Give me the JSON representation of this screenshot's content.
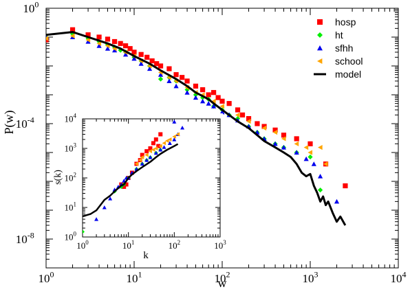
{
  "chart_data": [
    {
      "type": "scatter",
      "title": "",
      "xlabel": "w",
      "ylabel": "P(w)",
      "xscale": "log",
      "yscale": "log",
      "xlim": [
        1,
        10000
      ],
      "ylim": [
        1e-09,
        1
      ],
      "x_ticks": [
        {
          "base": "10",
          "exp": "0"
        },
        {
          "base": "10",
          "exp": "1"
        },
        {
          "base": "10",
          "exp": "2"
        },
        {
          "base": "10",
          "exp": "3"
        },
        {
          "base": "10",
          "exp": "4"
        }
      ],
      "y_ticks": [
        {
          "base": "10",
          "exp": "0",
          "value": 1
        },
        {
          "base": "10",
          "exp": "-4",
          "value": 0.0001
        },
        {
          "base": "10",
          "exp": "-8",
          "value": 1e-08
        }
      ],
      "legend_position": "top-right",
      "series": [
        {
          "name": "hosp",
          "marker": "square",
          "color": "#ff0000",
          "points": [
            [
              1,
              0.08
            ],
            [
              2,
              0.18
            ],
            [
              3,
              0.12
            ],
            [
              4,
              0.1
            ],
            [
              5,
              0.085
            ],
            [
              6,
              0.07
            ],
            [
              7,
              0.06
            ],
            [
              8,
              0.05
            ],
            [
              9,
              0.04
            ],
            [
              10,
              0.03
            ],
            [
              12,
              0.025
            ],
            [
              14,
              0.02
            ],
            [
              16,
              0.015
            ],
            [
              18,
              0.012
            ],
            [
              20,
              0.01
            ],
            [
              25,
              0.008
            ],
            [
              30,
              0.005
            ],
            [
              35,
              0.004
            ],
            [
              40,
              0.003
            ],
            [
              50,
              0.002
            ],
            [
              60,
              0.0015
            ],
            [
              70,
              0.001
            ],
            [
              80,
              0.0012
            ],
            [
              90,
              0.0008
            ],
            [
              100,
              0.0006
            ],
            [
              120,
              0.0005
            ],
            [
              150,
              0.0003
            ],
            [
              170,
              0.0002
            ],
            [
              200,
              0.00015
            ],
            [
              250,
              0.0001
            ],
            [
              300,
              8e-05
            ],
            [
              400,
              6e-05
            ],
            [
              500,
              4e-05
            ],
            [
              700,
              3e-05
            ],
            [
              1000,
              2e-05
            ],
            [
              1500,
              4e-06
            ],
            [
              2500,
              7e-07
            ]
          ]
        },
        {
          "name": "ht",
          "marker": "diamond",
          "color": "#00ee00",
          "points": [
            [
              1,
              0.1
            ],
            [
              2,
              0.13
            ],
            [
              3,
              0.09
            ],
            [
              4,
              0.07
            ],
            [
              5,
              0.055
            ],
            [
              6,
              0.045
            ],
            [
              7,
              0.035
            ],
            [
              8,
              0.03
            ],
            [
              10,
              0.02
            ],
            [
              12,
              0.015
            ],
            [
              15,
              0.01
            ],
            [
              20,
              0.0035
            ],
            [
              25,
              0.004
            ],
            [
              30,
              0.003
            ],
            [
              40,
              0.0015
            ],
            [
              50,
              0.001
            ],
            [
              60,
              0.0008
            ],
            [
              70,
              0.0007
            ],
            [
              80,
              0.0004
            ],
            [
              100,
              0.0003
            ],
            [
              120,
              0.0002
            ],
            [
              150,
              0.00015
            ],
            [
              200,
              8e-05
            ],
            [
              250,
              5e-05
            ],
            [
              300,
              3e-05
            ],
            [
              400,
              2e-05
            ],
            [
              500,
              1.5e-05
            ],
            [
              700,
              1e-05
            ],
            [
              1000,
              7e-06
            ],
            [
              1300,
              5e-07
            ]
          ]
        },
        {
          "name": "sfhh",
          "marker": "triangle-up",
          "color": "#0000ee",
          "points": [
            [
              1,
              0.1
            ],
            [
              2,
              0.1
            ],
            [
              3,
              0.07
            ],
            [
              4,
              0.05
            ],
            [
              5,
              0.04
            ],
            [
              6,
              0.035
            ],
            [
              8,
              0.025
            ],
            [
              10,
              0.018
            ],
            [
              12,
              0.012
            ],
            [
              15,
              0.008
            ],
            [
              20,
              0.005
            ],
            [
              25,
              0.003
            ],
            [
              30,
              0.002
            ],
            [
              40,
              0.0012
            ],
            [
              50,
              0.0008
            ],
            [
              60,
              0.0006
            ],
            [
              70,
              0.0005
            ],
            [
              80,
              0.0004
            ],
            [
              100,
              0.00025
            ],
            [
              120,
              0.0002
            ],
            [
              150,
              0.00013
            ],
            [
              200,
              8e-05
            ],
            [
              250,
              5e-05
            ],
            [
              300,
              3e-05
            ],
            [
              400,
              2e-05
            ],
            [
              500,
              1.5e-05
            ],
            [
              700,
              1e-05
            ],
            [
              900,
              6e-06
            ],
            [
              1100,
              4e-06
            ],
            [
              1300,
              1.5e-06
            ],
            [
              2000,
              2e-07
            ]
          ]
        },
        {
          "name": "school",
          "marker": "triangle-left",
          "color": "#ffa500",
          "points": [
            [
              1,
              0.09
            ],
            [
              2,
              0.11
            ],
            [
              3,
              0.08
            ],
            [
              4,
              0.06
            ],
            [
              5,
              0.05
            ],
            [
              6,
              0.04
            ],
            [
              8,
              0.03
            ],
            [
              10,
              0.022
            ],
            [
              12,
              0.015
            ],
            [
              15,
              0.01
            ],
            [
              20,
              0.006
            ],
            [
              25,
              0.004
            ],
            [
              30,
              0.003
            ],
            [
              40,
              0.0018
            ],
            [
              50,
              0.0012
            ],
            [
              60,
              0.001
            ],
            [
              80,
              0.0006
            ],
            [
              100,
              0.0004
            ],
            [
              150,
              0.0002
            ],
            [
              200,
              0.00012
            ],
            [
              300,
              7e-05
            ],
            [
              400,
              5e-05
            ],
            [
              500,
              3e-05
            ],
            [
              700,
              2e-05
            ],
            [
              900,
              1.5e-05
            ],
            [
              1000,
              1e-05
            ],
            [
              1300,
              1.5e-05
            ],
            [
              1500,
              4e-06
            ]
          ]
        },
        {
          "name": "model",
          "marker": "line",
          "color": "#000000",
          "points": [
            [
              1,
              0.12
            ],
            [
              2,
              0.15
            ],
            [
              3,
              0.1
            ],
            [
              4,
              0.075
            ],
            [
              5,
              0.06
            ],
            [
              7,
              0.04
            ],
            [
              10,
              0.022
            ],
            [
              15,
              0.012
            ],
            [
              20,
              0.007
            ],
            [
              30,
              0.0035
            ],
            [
              40,
              0.002
            ],
            [
              50,
              0.0012
            ],
            [
              60,
              0.0009
            ],
            [
              70,
              0.0007
            ],
            [
              80,
              0.0005
            ],
            [
              100,
              0.0003
            ],
            [
              120,
              0.0002
            ],
            [
              150,
              0.00012
            ],
            [
              200,
              7e-05
            ],
            [
              250,
              4e-05
            ],
            [
              300,
              2.5e-05
            ],
            [
              400,
              1.5e-05
            ],
            [
              500,
              1e-05
            ],
            [
              600,
              7e-06
            ],
            [
              700,
              4e-06
            ],
            [
              800,
              2e-06
            ],
            [
              900,
              1.5e-06
            ],
            [
              1000,
              1.8e-06
            ],
            [
              1100,
              7e-07
            ],
            [
              1200,
              4e-07
            ],
            [
              1300,
              2e-07
            ],
            [
              1400,
              3e-07
            ],
            [
              1500,
              1.5e-07
            ],
            [
              1600,
              2e-07
            ],
            [
              1800,
              8e-08
            ],
            [
              2000,
              4e-08
            ],
            [
              2200,
              6e-08
            ],
            [
              2500,
              3e-08
            ]
          ]
        }
      ]
    },
    {
      "type": "scatter",
      "title": "",
      "xlabel": "k",
      "ylabel": "s(k)",
      "xscale": "log",
      "yscale": "log",
      "xlim": [
        1,
        1000
      ],
      "ylim": [
        1,
        10000
      ],
      "x_ticks": [
        {
          "base": "10",
          "exp": "0"
        },
        {
          "base": "10",
          "exp": "1"
        },
        {
          "base": "10",
          "exp": "2"
        },
        {
          "base": "10",
          "exp": "3"
        }
      ],
      "y_ticks": [
        {
          "base": "10",
          "exp": "0"
        },
        {
          "base": "10",
          "exp": "1"
        },
        {
          "base": "10",
          "exp": "2"
        },
        {
          "base": "10",
          "exp": "3"
        },
        {
          "base": "10",
          "exp": "4"
        }
      ],
      "series": [
        {
          "name": "hosp",
          "marker": "square",
          "color": "#ff0000",
          "points": [
            [
              7,
              60
            ],
            [
              8,
              50
            ],
            [
              9,
              60
            ],
            [
              10,
              100
            ],
            [
              12,
              150
            ],
            [
              15,
              300
            ],
            [
              18,
              400
            ],
            [
              20,
              600
            ],
            [
              25,
              800
            ],
            [
              30,
              1000
            ],
            [
              35,
              1500
            ],
            [
              40,
              2000
            ],
            [
              45,
              1200
            ],
            [
              50,
              3000
            ]
          ]
        },
        {
          "name": "ht",
          "marker": "diamond",
          "color": "#00ee00",
          "points": [
            [
              1,
              1.5
            ],
            [
              5,
              35
            ],
            [
              7,
              50
            ],
            [
              8,
              60
            ],
            [
              10,
              100
            ],
            [
              15,
              200
            ],
            [
              20,
              300
            ],
            [
              25,
              400
            ],
            [
              30,
              500
            ],
            [
              40,
              700
            ],
            [
              50,
              900
            ]
          ]
        },
        {
          "name": "sfhh",
          "marker": "triangle-up",
          "color": "#0000ee",
          "points": [
            [
              2,
              4
            ],
            [
              3,
              10
            ],
            [
              4,
              20
            ],
            [
              5,
              40
            ],
            [
              6,
              50
            ],
            [
              7,
              60
            ],
            [
              8,
              80
            ],
            [
              9,
              100
            ],
            [
              10,
              100
            ],
            [
              12,
              150
            ],
            [
              15,
              200
            ],
            [
              20,
              300
            ],
            [
              25,
              400
            ],
            [
              30,
              500
            ],
            [
              40,
              700
            ],
            [
              50,
              900
            ],
            [
              60,
              1100
            ],
            [
              80,
              1500
            ],
            [
              100,
              2000
            ],
            [
              120,
              3000
            ],
            [
              150,
              5000
            ],
            [
              100,
              8000
            ]
          ]
        },
        {
          "name": "school",
          "marker": "triangle-left",
          "color": "#ffa500",
          "points": [
            [
              15,
              300
            ],
            [
              18,
              400
            ],
            [
              20,
              500
            ],
            [
              25,
              600
            ],
            [
              30,
              800
            ],
            [
              35,
              900
            ],
            [
              40,
              1000
            ],
            [
              50,
              1200
            ],
            [
              60,
              1500
            ],
            [
              70,
              1800
            ],
            [
              80,
              2000
            ],
            [
              100,
              2500
            ],
            [
              120,
              3000
            ]
          ]
        },
        {
          "name": "model",
          "marker": "line",
          "color": "#000000",
          "points": [
            [
              1,
              5
            ],
            [
              1.5,
              6
            ],
            [
              2,
              8
            ],
            [
              3,
              18
            ],
            [
              4,
              25
            ],
            [
              5,
              35
            ],
            [
              6,
              45
            ],
            [
              7,
              55
            ],
            [
              8,
              60
            ],
            [
              10,
              100
            ],
            [
              12,
              130
            ],
            [
              15,
              170
            ],
            [
              20,
              230
            ],
            [
              30,
              350
            ],
            [
              40,
              500
            ],
            [
              50,
              650
            ],
            [
              70,
              900
            ],
            [
              100,
              1200
            ],
            [
              120,
              1400
            ]
          ]
        }
      ]
    }
  ]
}
